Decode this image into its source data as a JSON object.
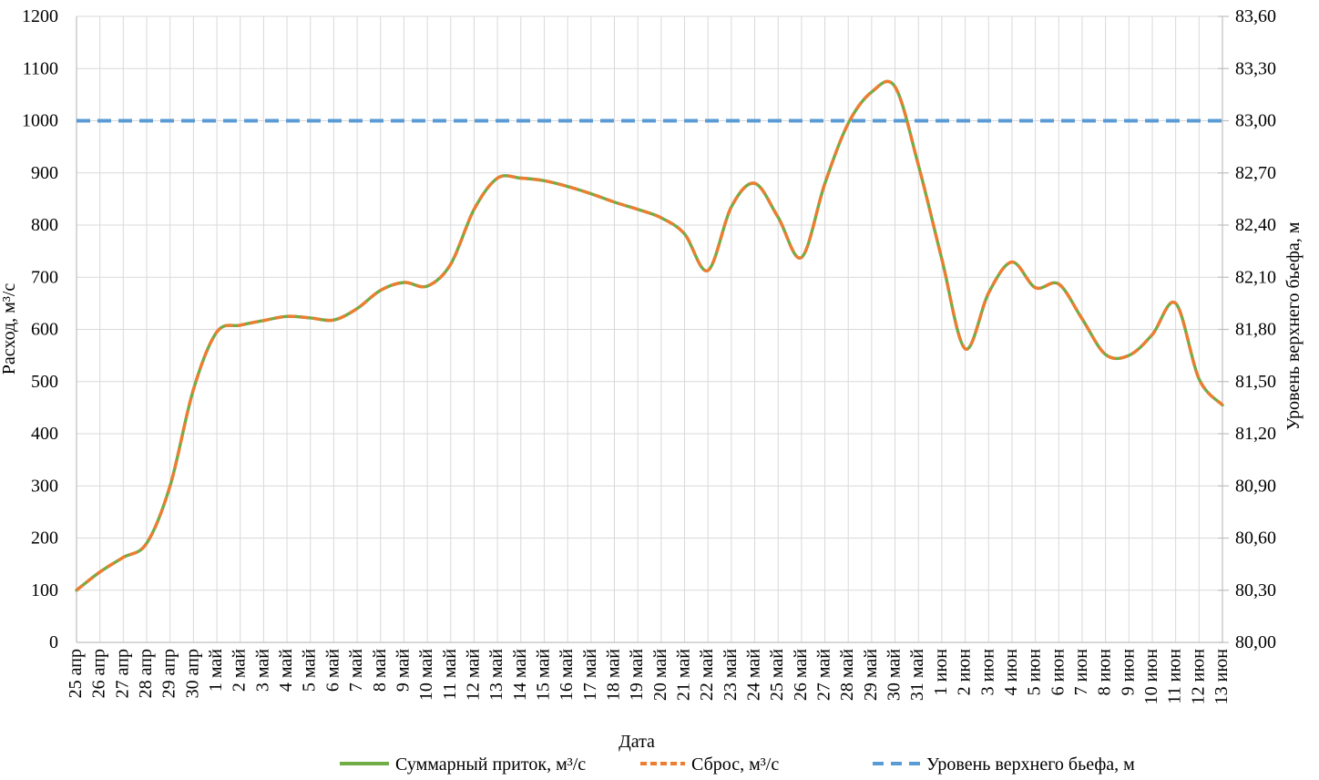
{
  "chart": {
    "background": "#FFFFFF",
    "grid_color": "#D9D9D9",
    "axis_color": "#BFBFBF",
    "left_axis": {
      "title": "Расход, м³/с",
      "min": 0,
      "max": 1200,
      "step": 100
    },
    "right_axis": {
      "title": "Уровень верхнего бьефа, м",
      "min": 80.0,
      "max": 83.6,
      "step": 0.3,
      "decimal_separator": ","
    },
    "x_axis": {
      "title": "Дата"
    }
  },
  "chart_data": {
    "type": "line",
    "smoothed": true,
    "grid": true,
    "legend_position": "bottom",
    "left_ylim": [
      0,
      1200
    ],
    "right_ylim": [
      80.0,
      83.6
    ],
    "x": [
      "25 апр",
      "26 апр",
      "27 апр",
      "28 апр",
      "29 апр",
      "30 апр",
      "1 май",
      "2 май",
      "3 май",
      "4 май",
      "5 май",
      "6 май",
      "7 май",
      "8 май",
      "9 май",
      "10 май",
      "11 май",
      "12 май",
      "13 май",
      "14 май",
      "15 май",
      "16 май",
      "17 май",
      "18 май",
      "19 май",
      "20 май",
      "21 май",
      "22 май",
      "23 май",
      "24 май",
      "25 май",
      "26 май",
      "27 май",
      "28 май",
      "29 май",
      "30 май",
      "31 май",
      "1 июн",
      "2 июн",
      "3 июн",
      "4 июн",
      "5 июн",
      "6 июн",
      "7 июн",
      "8 июн",
      "9 июн",
      "10 июн",
      "11 июн",
      "12 июн",
      "13 июн"
    ],
    "series": [
      {
        "name": "Суммарный приток, м³/с",
        "axis": "left",
        "color": "#70AD47",
        "style": "solid",
        "values": [
          100,
          135,
          163,
          190,
          300,
          485,
          595,
          608,
          617,
          625,
          622,
          618,
          640,
          675,
          690,
          683,
          725,
          830,
          890,
          890,
          885,
          874,
          860,
          844,
          830,
          814,
          783,
          713,
          835,
          880,
          815,
          738,
          880,
          995,
          1055,
          1065,
          915,
          735,
          563,
          670,
          729,
          680,
          687,
          620,
          552,
          550,
          590,
          650,
          505,
          455
        ]
      },
      {
        "name": "Сброс, м³/с",
        "axis": "left",
        "color": "#ED7D31",
        "style": "dashed",
        "values": [
          100,
          135,
          163,
          190,
          300,
          485,
          595,
          608,
          617,
          625,
          622,
          618,
          640,
          675,
          690,
          683,
          725,
          830,
          890,
          890,
          885,
          874,
          860,
          844,
          830,
          814,
          783,
          713,
          835,
          880,
          815,
          738,
          880,
          995,
          1055,
          1065,
          915,
          735,
          563,
          670,
          729,
          680,
          687,
          620,
          552,
          550,
          590,
          650,
          505,
          455
        ]
      },
      {
        "name": "Уровень верхнего бьефа, м",
        "axis": "right",
        "color": "#5B9BD5",
        "style": "dashed",
        "constant_value": 83.0
      }
    ]
  }
}
